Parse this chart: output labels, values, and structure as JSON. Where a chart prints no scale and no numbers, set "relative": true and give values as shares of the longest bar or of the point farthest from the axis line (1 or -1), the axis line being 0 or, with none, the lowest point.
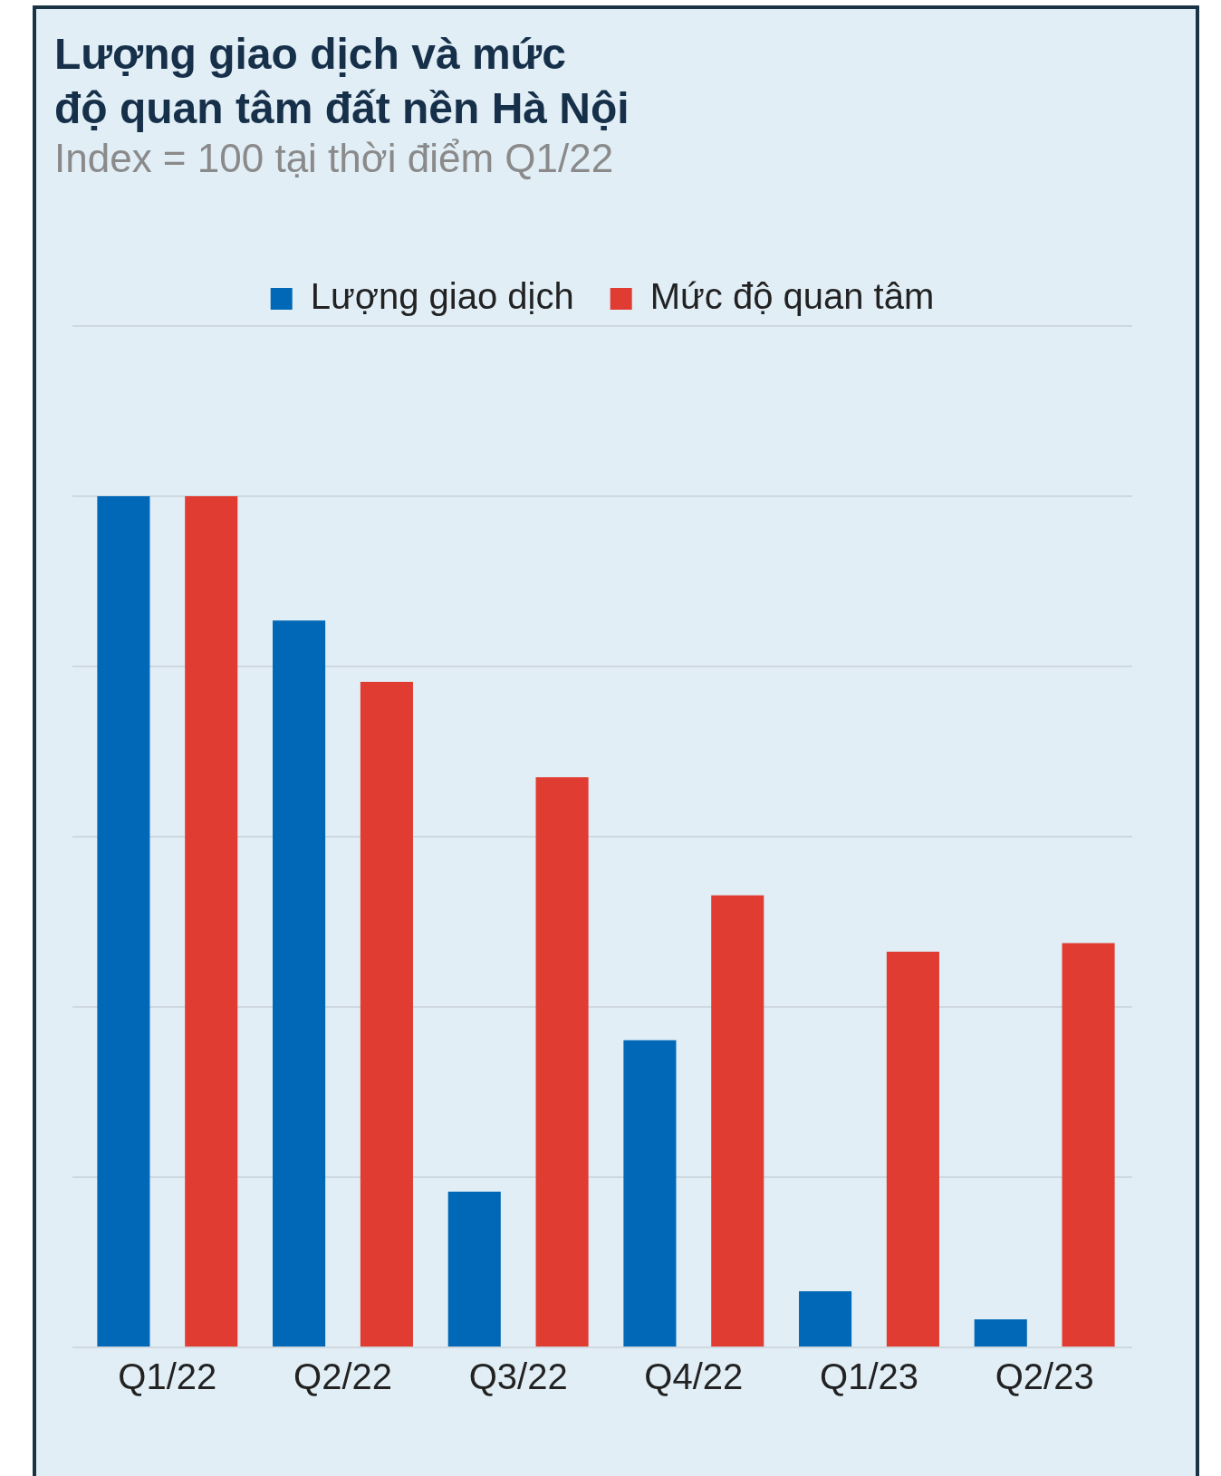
{
  "chart_data": {
    "type": "bar",
    "title": "Lượng giao dịch và mức\nđộ quan tâm đất nền Hà Nội",
    "subtitle": "Index = 100 tại thời điểm Q1/22",
    "categories": [
      "Q1/22",
      "Q2/22",
      "Q3/22",
      "Q4/22",
      "Q1/23",
      "Q2/23"
    ],
    "relative": true,
    "grid": "y",
    "legend": "top",
    "series": [
      {
        "name": "Lượng giao dịch",
        "color": "#0068b7",
        "values": [
          1,
          0.854,
          0.183,
          0.361,
          0.066,
          0.033
        ]
      },
      {
        "name": "Mức độ quan tâm",
        "color": "#e03c31",
        "values": [
          1,
          0.782,
          0.67,
          0.531,
          0.465,
          0.475
        ]
      }
    ]
  }
}
